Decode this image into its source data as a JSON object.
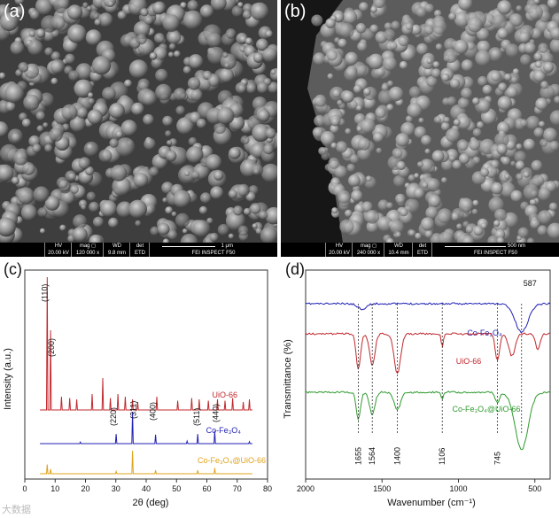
{
  "panels": {
    "a": {
      "label": "(a)",
      "databar": {
        "hv_label": "HV",
        "hv": "20.00 kV",
        "mag_label": "mag ◻",
        "mag": "120 000 x",
        "wd_label": "WD",
        "wd": "9.8 mm",
        "det_label": "det",
        "det": "ETD",
        "scale": "1 μm",
        "instrument": "FEI INSPECT F50"
      }
    },
    "b": {
      "label": "(b)",
      "databar": {
        "hv_label": "HV",
        "hv": "20.00 kV",
        "mag_label": "mag ◻",
        "mag": "240 000 x",
        "wd_label": "WD",
        "wd": "10.4 mm",
        "det_label": "det",
        "det": "ETD",
        "scale": "500 nm",
        "instrument": "FEI INSPECT F50"
      }
    },
    "c": {
      "label": "(c)"
    },
    "d": {
      "label": "(d)"
    }
  },
  "watermark": "大数据",
  "chart_data": [
    {
      "type": "line",
      "panel": "c",
      "xlabel": "2θ (deg)",
      "ylabel": "Intensity (a.u.)",
      "xlim": [
        0,
        80
      ],
      "xticks": [
        0,
        10,
        20,
        30,
        40,
        50,
        60,
        70,
        80
      ],
      "series": [
        {
          "name": "UiO-66",
          "color": "#c0282d",
          "peaks": [
            [
              7.4,
              100
            ],
            [
              8.5,
              60
            ],
            [
              12.1,
              10
            ],
            [
              14.8,
              9
            ],
            [
              17.1,
              8
            ],
            [
              22.2,
              12
            ],
            [
              25.7,
              24
            ],
            [
              28.2,
              9
            ],
            [
              30.7,
              12
            ],
            [
              33.1,
              10
            ],
            [
              35.5,
              8
            ],
            [
              37.2,
              6
            ],
            [
              43.5,
              10
            ],
            [
              50.4,
              7
            ],
            [
              55.0,
              9
            ],
            [
              57.5,
              8
            ],
            [
              60.5,
              7
            ],
            [
              63.5,
              8
            ],
            [
              66.0,
              7
            ],
            [
              68.5,
              9
            ],
            [
              72.0,
              6
            ],
            [
              74.0,
              8
            ]
          ]
        },
        {
          "name": "Co-Fe₃O₄",
          "color": "#1f1fb4",
          "peaks": [
            [
              18.3,
              5
            ],
            [
              30.1,
              30
            ],
            [
              35.5,
              100
            ],
            [
              43.1,
              28
            ],
            [
              53.5,
              8
            ],
            [
              57.0,
              30
            ],
            [
              62.6,
              40
            ],
            [
              74.0,
              6
            ]
          ]
        },
        {
          "name": "Co-Fe₃O₄@UiO-66",
          "color": "#e0a21a",
          "peaks": [
            [
              7.4,
              40
            ],
            [
              8.5,
              20
            ],
            [
              30.1,
              10
            ],
            [
              35.5,
              100
            ],
            [
              43.1,
              15
            ],
            [
              57.0,
              15
            ],
            [
              62.6,
              25
            ]
          ]
        }
      ],
      "annotations": [
        "(110)",
        "(200)",
        "(220)",
        "(311)",
        "(400)",
        "(511)",
        "(440)"
      ]
    },
    {
      "type": "line",
      "panel": "d",
      "xlabel": "Wavenumber (cm⁻¹)",
      "ylabel": "Transmittance (%)",
      "xlim": [
        2000,
        400
      ],
      "xticks": [
        2000,
        1500,
        1000,
        500
      ],
      "series": [
        {
          "name": "Co-Fe₃O₄",
          "color": "#1f1fb4"
        },
        {
          "name": "UiO-66",
          "color": "#c0282d"
        },
        {
          "name": "Co-Fe₃O₄@UiO-66",
          "color": "#2e9a2e"
        }
      ],
      "marked_bands": [
        1655,
        1564,
        1400,
        1106,
        745,
        587
      ]
    }
  ]
}
